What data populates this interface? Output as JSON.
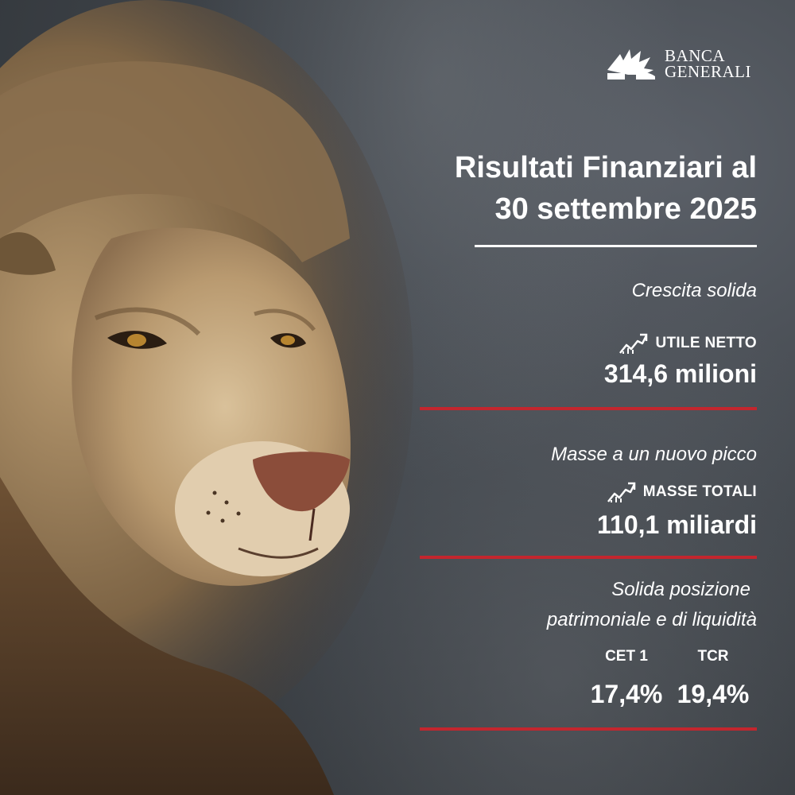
{
  "brand": {
    "logo_line1": "BANCA",
    "logo_line2": "GENERALI",
    "logo_icon": "winged-lion-icon",
    "accent_color": "#c3262e"
  },
  "title": {
    "line1": "Risultati Finanziari al",
    "line2": "30 settembre 2025"
  },
  "sections": [
    {
      "subtitle": "Crescita solida",
      "label": "UTILE NETTO",
      "icon": "trend-up-icon",
      "value": "314,6 milioni"
    },
    {
      "subtitle": "Masse a un nuovo picco",
      "label": "MASSE TOTALI",
      "icon": "trend-up-icon",
      "value": "110,1 miliardi"
    }
  ],
  "capital": {
    "subtitle_line1": "Solida posizione",
    "subtitle_line2": "patrimoniale e di liquidità",
    "ratios": [
      {
        "label": "CET 1",
        "value": "17,4%"
      },
      {
        "label": "TCR",
        "value": "19,4%"
      }
    ]
  }
}
